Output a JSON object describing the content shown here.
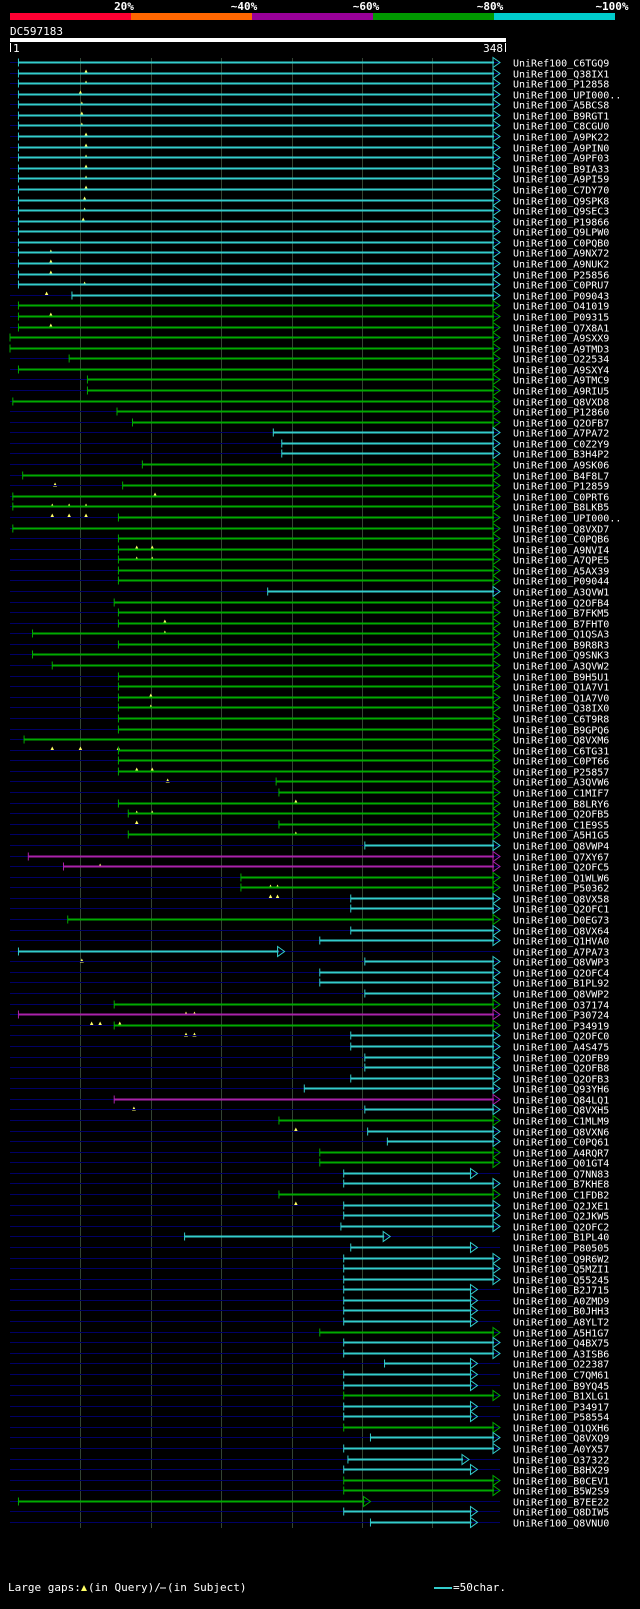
{
  "query": {
    "id": "DC597183",
    "start_label": "1",
    "end_label": "348",
    "length": 348
  },
  "legend": {
    "labels": [
      "20%",
      "~40%",
      "~60%",
      "~80%",
      "~100%"
    ],
    "colors": [
      "#ff0033",
      "#ff6600",
      "#990099",
      "#009900",
      "#00cccc"
    ]
  },
  "footer": {
    "gaps_label": "Large gaps:",
    "gaps_query": "(in Query)/",
    "gaps_subject": "(in Subject)",
    "scale_label": "=50char."
  },
  "colors": {
    "background": "#000000",
    "grid": "#334433",
    "line": "#000066",
    "cyan": "#33cccc",
    "green": "#00aa00",
    "magenta": "#aa22aa",
    "marker": "#ffff66"
  },
  "hits": [
    {
      "name": "UniRef100_C6TGQ9",
      "color": "cyan",
      "start": 6,
      "end": 348,
      "gaps": [
        54
      ]
    },
    {
      "name": "UniRef100_Q38IX1",
      "color": "cyan",
      "start": 6,
      "end": 348,
      "gaps": [
        54
      ]
    },
    {
      "name": "UniRef100_P12858",
      "color": "cyan",
      "start": 6,
      "end": 348,
      "gaps": [
        50
      ]
    },
    {
      "name": "UniRef100_UPI000..",
      "color": "cyan",
      "start": 6,
      "end": 348,
      "gaps": [
        51
      ]
    },
    {
      "name": "UniRef100_A5BCS8",
      "color": "cyan",
      "start": 6,
      "end": 348,
      "gaps": [
        51
      ]
    },
    {
      "name": "UniRef100_B9RGT1",
      "color": "cyan",
      "start": 6,
      "end": 348,
      "gaps": [
        51
      ]
    },
    {
      "name": "UniRef100_C8CGU0",
      "color": "cyan",
      "start": 6,
      "end": 348,
      "gaps": [
        54
      ]
    },
    {
      "name": "UniRef100_A9PK22",
      "color": "cyan",
      "start": 6,
      "end": 348,
      "gaps": [
        54
      ]
    },
    {
      "name": "UniRef100_A9PIN0",
      "color": "cyan",
      "start": 6,
      "end": 348,
      "gaps": [
        54
      ]
    },
    {
      "name": "UniRef100_A9PF03",
      "color": "cyan",
      "start": 6,
      "end": 348,
      "gaps": [
        54
      ]
    },
    {
      "name": "UniRef100_B9IA33",
      "color": "cyan",
      "start": 6,
      "end": 348,
      "gaps": [
        54
      ]
    },
    {
      "name": "UniRef100_A9PI59",
      "color": "cyan",
      "start": 6,
      "end": 348,
      "gaps": [
        54
      ]
    },
    {
      "name": "UniRef100_C7DY70",
      "color": "cyan",
      "start": 6,
      "end": 348,
      "gaps": [
        53
      ]
    },
    {
      "name": "UniRef100_Q9SPK8",
      "color": "cyan",
      "start": 6,
      "end": 348,
      "gaps": [
        53
      ]
    },
    {
      "name": "UniRef100_Q9SEC3",
      "color": "cyan",
      "start": 6,
      "end": 348,
      "gaps": [
        52
      ]
    },
    {
      "name": "UniRef100_P19866",
      "color": "cyan",
      "start": 6,
      "end": 348,
      "gaps": []
    },
    {
      "name": "UniRef100_Q9LPW0",
      "color": "cyan",
      "start": 6,
      "end": 348,
      "gaps": []
    },
    {
      "name": "UniRef100_C0PQB0",
      "color": "cyan",
      "start": 6,
      "end": 348,
      "gaps": [
        29
      ]
    },
    {
      "name": "UniRef100_A9NX72",
      "color": "cyan",
      "start": 6,
      "end": 348,
      "gaps": [
        29
      ]
    },
    {
      "name": "UniRef100_A9NUK2",
      "color": "cyan",
      "start": 6,
      "end": 348,
      "gaps": [
        29
      ]
    },
    {
      "name": "UniRef100_P25856",
      "color": "cyan",
      "start": 6,
      "end": 348,
      "gaps": [
        53
      ]
    },
    {
      "name": "UniRef100_C0PRU7",
      "color": "cyan",
      "start": 6,
      "end": 348,
      "gaps": [
        26
      ]
    },
    {
      "name": "UniRef100_P09043",
      "color": "cyan",
      "start": 44,
      "end": 348,
      "gaps": []
    },
    {
      "name": "UniRef100_O41019",
      "color": "green",
      "start": 6,
      "end": 348,
      "gaps": [
        29
      ]
    },
    {
      "name": "UniRef100_P09315",
      "color": "green",
      "start": 6,
      "end": 348,
      "gaps": [
        29
      ]
    },
    {
      "name": "UniRef100_Q7X8A1",
      "color": "green",
      "start": 6,
      "end": 348,
      "gaps": []
    },
    {
      "name": "UniRef100_A9SXX9",
      "color": "green",
      "start": -12,
      "end": 348,
      "gaps": []
    },
    {
      "name": "UniRef100_A9TMD3",
      "color": "green",
      "start": -12,
      "end": 348,
      "gaps": []
    },
    {
      "name": "UniRef100_O22534",
      "color": "green",
      "start": 42,
      "end": 348,
      "gaps": []
    },
    {
      "name": "UniRef100_A9SXY4",
      "color": "green",
      "start": 6,
      "end": 348,
      "gaps": []
    },
    {
      "name": "UniRef100_A9TMC9",
      "color": "green",
      "start": 55,
      "end": 348,
      "gaps": []
    },
    {
      "name": "UniRef100_A9RIU5",
      "color": "green",
      "start": 55,
      "end": 348,
      "gaps": []
    },
    {
      "name": "UniRef100_Q8VXD8",
      "color": "green",
      "start": 2,
      "end": 348,
      "gaps": []
    },
    {
      "name": "UniRef100_P12860",
      "color": "green",
      "start": 76,
      "end": 348,
      "gaps": []
    },
    {
      "name": "UniRef100_Q2OFB7",
      "color": "green",
      "start": 87,
      "end": 348,
      "gaps": []
    },
    {
      "name": "UniRef100_A7PA72",
      "color": "cyan",
      "start": 187,
      "end": 348,
      "gaps": []
    },
    {
      "name": "UniRef100_C0Z2Y9",
      "color": "cyan",
      "start": 193,
      "end": 348,
      "gaps": []
    },
    {
      "name": "UniRef100_B3H4P2",
      "color": "cyan",
      "start": 193,
      "end": 348,
      "gaps": []
    },
    {
      "name": "UniRef100_A9SK06",
      "color": "green",
      "start": 94,
      "end": 348,
      "gaps": []
    },
    {
      "name": "UniRef100_B4F8L7",
      "color": "green",
      "start": 9,
      "end": 348,
      "gaps": [
        32
      ]
    },
    {
      "name": "UniRef100_P12859",
      "color": "green",
      "start": 80,
      "end": 348,
      "gaps": [
        103
      ]
    },
    {
      "name": "UniRef100_C0PRT6",
      "color": "green",
      "start": 2,
      "end": 348,
      "gaps": [
        30,
        42,
        54
      ]
    },
    {
      "name": "UniRef100_B8LKB5",
      "color": "green",
      "start": 2,
      "end": 348,
      "gaps": [
        30,
        42,
        54
      ]
    },
    {
      "name": "UniRef100_UPI000..",
      "color": "green",
      "start": 77,
      "end": 348,
      "gaps": []
    },
    {
      "name": "UniRef100_Q8VXD7",
      "color": "green",
      "start": 2,
      "end": 348,
      "gaps": []
    },
    {
      "name": "UniRef100_C0PQB6",
      "color": "green",
      "start": 77,
      "end": 348,
      "gaps": [
        90,
        101
      ]
    },
    {
      "name": "UniRef100_A9NVI4",
      "color": "green",
      "start": 77,
      "end": 348,
      "gaps": [
        90,
        101
      ]
    },
    {
      "name": "UniRef100_A7QPE5",
      "color": "green",
      "start": 77,
      "end": 348,
      "gaps": []
    },
    {
      "name": "UniRef100_A5AX39",
      "color": "green",
      "start": 77,
      "end": 348,
      "gaps": []
    },
    {
      "name": "UniRef100_P09044",
      "color": "green",
      "start": 77,
      "end": 348,
      "gaps": []
    },
    {
      "name": "UniRef100_A3QVW1",
      "color": "cyan",
      "start": 183,
      "end": 348,
      "gaps": []
    },
    {
      "name": "UniRef100_Q2OFB4",
      "color": "green",
      "start": 74,
      "end": 348,
      "gaps": []
    },
    {
      "name": "UniRef100_B7FKM5",
      "color": "green",
      "start": 77,
      "end": 348,
      "gaps": [
        110
      ]
    },
    {
      "name": "UniRef100_B7FHT0",
      "color": "green",
      "start": 77,
      "end": 348,
      "gaps": [
        110
      ]
    },
    {
      "name": "UniRef100_Q1QSA3",
      "color": "green",
      "start": 16,
      "end": 348,
      "gaps": []
    },
    {
      "name": "UniRef100_B9R8R3",
      "color": "green",
      "start": 77,
      "end": 348,
      "gaps": []
    },
    {
      "name": "UniRef100_Q9SNK3",
      "color": "green",
      "start": 16,
      "end": 348,
      "gaps": []
    },
    {
      "name": "UniRef100_A3QVW2",
      "color": "green",
      "start": 30,
      "end": 348,
      "gaps": []
    },
    {
      "name": "UniRef100_B9H5U1",
      "color": "green",
      "start": 77,
      "end": 348,
      "gaps": []
    },
    {
      "name": "UniRef100_Q1A7V1",
      "color": "green",
      "start": 77,
      "end": 348,
      "gaps": [
        100
      ]
    },
    {
      "name": "UniRef100_Q1A7V0",
      "color": "green",
      "start": 77,
      "end": 348,
      "gaps": [
        100
      ]
    },
    {
      "name": "UniRef100_Q38IX0",
      "color": "green",
      "start": 77,
      "end": 348,
      "gaps": []
    },
    {
      "name": "UniRef100_C6T9R8",
      "color": "green",
      "start": 77,
      "end": 348,
      "gaps": []
    },
    {
      "name": "UniRef100_B9GPQ6",
      "color": "green",
      "start": 77,
      "end": 348,
      "gaps": []
    },
    {
      "name": "UniRef100_Q8VXM6",
      "color": "green",
      "start": 10,
      "end": 348,
      "gaps": [
        30,
        50,
        77
      ]
    },
    {
      "name": "UniRef100_C6TG31",
      "color": "green",
      "start": 77,
      "end": 348,
      "gaps": []
    },
    {
      "name": "UniRef100_C0PT66",
      "color": "green",
      "start": 77,
      "end": 348,
      "gaps": [
        90,
        101
      ]
    },
    {
      "name": "UniRef100_P25857",
      "color": "green",
      "start": 77,
      "end": 348,
      "gaps": [
        112
      ]
    },
    {
      "name": "UniRef100_A3QVW6",
      "color": "green",
      "start": 189,
      "end": 348,
      "gaps": []
    },
    {
      "name": "UniRef100_C1MIF7",
      "color": "green",
      "start": 191,
      "end": 348,
      "gaps": [
        203
      ]
    },
    {
      "name": "UniRef100_B8LRY6",
      "color": "green",
      "start": 77,
      "end": 348,
      "gaps": [
        90,
        101
      ]
    },
    {
      "name": "UniRef100_Q2OFB5",
      "color": "green",
      "start": 84,
      "end": 348,
      "gaps": [
        90
      ]
    },
    {
      "name": "UniRef100_C1E9S5",
      "color": "green",
      "start": 191,
      "end": 348,
      "gaps": [
        203
      ]
    },
    {
      "name": "UniRef100_A5H1G5",
      "color": "green",
      "start": 84,
      "end": 348,
      "gaps": []
    },
    {
      "name": "UniRef100_Q8VWP4",
      "color": "cyan",
      "start": 252,
      "end": 348,
      "gaps": []
    },
    {
      "name": "UniRef100_Q7XY67",
      "color": "magenta",
      "start": 13,
      "end": 348,
      "gaps": [
        64
      ]
    },
    {
      "name": "UniRef100_Q2OFC5",
      "color": "magenta",
      "start": 38,
      "end": 348,
      "gaps": []
    },
    {
      "name": "UniRef100_Q1WLW6",
      "color": "green",
      "start": 164,
      "end": 348,
      "gaps": [
        185,
        190
      ]
    },
    {
      "name": "UniRef100_P50362",
      "color": "green",
      "start": 164,
      "end": 348,
      "gaps": [
        185,
        190
      ]
    },
    {
      "name": "UniRef100_Q8VX58",
      "color": "cyan",
      "start": 242,
      "end": 348,
      "gaps": []
    },
    {
      "name": "UniRef100_Q2OFC1",
      "color": "cyan",
      "start": 242,
      "end": 348,
      "gaps": []
    },
    {
      "name": "UniRef100_D0EG73",
      "color": "green",
      "start": 41,
      "end": 348,
      "gaps": []
    },
    {
      "name": "UniRef100_Q8VX64",
      "color": "cyan",
      "start": 242,
      "end": 348,
      "gaps": []
    },
    {
      "name": "UniRef100_Q1HVA0",
      "color": "cyan",
      "start": 220,
      "end": 348,
      "gaps": []
    },
    {
      "name": "UniRef100_A7PA73",
      "color": "cyan",
      "start": 6,
      "end": 195,
      "gaps": [
        51
      ]
    },
    {
      "name": "UniRef100_Q8VWP3",
      "color": "cyan",
      "start": 252,
      "end": 348,
      "gaps": []
    },
    {
      "name": "UniRef100_Q2OFC4",
      "color": "cyan",
      "start": 220,
      "end": 348,
      "gaps": []
    },
    {
      "name": "UniRef100_B1PL92",
      "color": "cyan",
      "start": 220,
      "end": 348,
      "gaps": []
    },
    {
      "name": "UniRef100_Q8VWP2",
      "color": "cyan",
      "start": 252,
      "end": 348,
      "gaps": []
    },
    {
      "name": "UniRef100_O37174",
      "color": "green",
      "start": 74,
      "end": 348,
      "gaps": [
        125,
        131
      ]
    },
    {
      "name": "UniRef100_P30724",
      "color": "magenta",
      "start": 6,
      "end": 348,
      "gaps": [
        58,
        64,
        78
      ]
    },
    {
      "name": "UniRef100_P34919",
      "color": "green",
      "start": 74,
      "end": 348,
      "gaps": [
        125,
        131
      ]
    },
    {
      "name": "UniRef100_Q2OFC0",
      "color": "cyan",
      "start": 242,
      "end": 348,
      "gaps": []
    },
    {
      "name": "UniRef100_A4S475",
      "color": "cyan",
      "start": 242,
      "end": 348,
      "gaps": []
    },
    {
      "name": "UniRef100_Q2OFB9",
      "color": "cyan",
      "start": 252,
      "end": 348,
      "gaps": []
    },
    {
      "name": "UniRef100_Q2OFB8",
      "color": "cyan",
      "start": 252,
      "end": 348,
      "gaps": []
    },
    {
      "name": "UniRef100_Q2OFB3",
      "color": "cyan",
      "start": 242,
      "end": 348,
      "gaps": []
    },
    {
      "name": "UniRef100_Q93YH6",
      "color": "cyan",
      "start": 209,
      "end": 348,
      "gaps": []
    },
    {
      "name": "UniRef100_Q84LQ1",
      "color": "magenta",
      "start": 74,
      "end": 348,
      "gaps": [
        88
      ]
    },
    {
      "name": "UniRef100_Q8VXH5",
      "color": "cyan",
      "start": 252,
      "end": 348,
      "gaps": []
    },
    {
      "name": "UniRef100_C1MLM9",
      "color": "green",
      "start": 191,
      "end": 348,
      "gaps": [
        203
      ]
    },
    {
      "name": "UniRef100_Q8VXN6",
      "color": "cyan",
      "start": 254,
      "end": 348,
      "gaps": []
    },
    {
      "name": "UniRef100_C0PQ61",
      "color": "cyan",
      "start": 268,
      "end": 348,
      "gaps": []
    },
    {
      "name": "UniRef100_A4RQR7",
      "color": "green",
      "start": 220,
      "end": 348,
      "gaps": []
    },
    {
      "name": "UniRef100_Q01GT4",
      "color": "green",
      "start": 220,
      "end": 348,
      "gaps": []
    },
    {
      "name": "UniRef100_Q7NN83",
      "color": "cyan",
      "start": 237,
      "end": 332,
      "gaps": []
    },
    {
      "name": "UniRef100_B7KHE8",
      "color": "cyan",
      "start": 237,
      "end": 348,
      "gaps": []
    },
    {
      "name": "UniRef100_C1FDB2",
      "color": "green",
      "start": 191,
      "end": 348,
      "gaps": [
        203
      ]
    },
    {
      "name": "UniRef100_Q2JXE1",
      "color": "cyan",
      "start": 237,
      "end": 348,
      "gaps": []
    },
    {
      "name": "UniRef100_Q2JKW5",
      "color": "cyan",
      "start": 237,
      "end": 348,
      "gaps": []
    },
    {
      "name": "UniRef100_Q2OFC2",
      "color": "cyan",
      "start": 235,
      "end": 348,
      "gaps": []
    },
    {
      "name": "UniRef100_B1PL40",
      "color": "cyan",
      "start": 124,
      "end": 270,
      "gaps": []
    },
    {
      "name": "UniRef100_P80505",
      "color": "cyan",
      "start": 242,
      "end": 332,
      "gaps": []
    },
    {
      "name": "UniRef100_Q9R6W2",
      "color": "cyan",
      "start": 237,
      "end": 348,
      "gaps": []
    },
    {
      "name": "UniRef100_Q5MZI1",
      "color": "cyan",
      "start": 237,
      "end": 348,
      "gaps": []
    },
    {
      "name": "UniRef100_Q55245",
      "color": "cyan",
      "start": 237,
      "end": 348,
      "gaps": []
    },
    {
      "name": "UniRef100_B2J715",
      "color": "cyan",
      "start": 237,
      "end": 332,
      "gaps": []
    },
    {
      "name": "UniRef100_A0ZMD9",
      "color": "cyan",
      "start": 237,
      "end": 332,
      "gaps": []
    },
    {
      "name": "UniRef100_B0JHH3",
      "color": "cyan",
      "start": 237,
      "end": 332,
      "gaps": []
    },
    {
      "name": "UniRef100_A8YLT2",
      "color": "cyan",
      "start": 237,
      "end": 332,
      "gaps": []
    },
    {
      "name": "UniRef100_A5H1G7",
      "color": "green",
      "start": 220,
      "end": 348,
      "gaps": []
    },
    {
      "name": "UniRef100_Q4BX75",
      "color": "cyan",
      "start": 237,
      "end": 348,
      "gaps": []
    },
    {
      "name": "UniRef100_A3ISB6",
      "color": "cyan",
      "start": 237,
      "end": 348,
      "gaps": []
    },
    {
      "name": "UniRef100_O22387",
      "color": "cyan",
      "start": 266,
      "end": 332,
      "gaps": []
    },
    {
      "name": "UniRef100_C7QM61",
      "color": "cyan",
      "start": 237,
      "end": 332,
      "gaps": []
    },
    {
      "name": "UniRef100_B9YQ45",
      "color": "cyan",
      "start": 237,
      "end": 332,
      "gaps": []
    },
    {
      "name": "UniRef100_B1XLG1",
      "color": "green",
      "start": 237,
      "end": 348,
      "gaps": []
    },
    {
      "name": "UniRef100_P34917",
      "color": "cyan",
      "start": 237,
      "end": 332,
      "gaps": []
    },
    {
      "name": "UniRef100_P58554",
      "color": "cyan",
      "start": 237,
      "end": 332,
      "gaps": []
    },
    {
      "name": "UniRef100_Q1QXH6",
      "color": "green",
      "start": 237,
      "end": 348,
      "gaps": []
    },
    {
      "name": "UniRef100_Q8VXQ9",
      "color": "cyan",
      "start": 256,
      "end": 348,
      "gaps": []
    },
    {
      "name": "UniRef100_A0YX57",
      "color": "cyan",
      "start": 237,
      "end": 348,
      "gaps": []
    },
    {
      "name": "UniRef100_O37322",
      "color": "cyan",
      "start": 240,
      "end": 326,
      "gaps": []
    },
    {
      "name": "UniRef100_B8HX29",
      "color": "cyan",
      "start": 237,
      "end": 332,
      "gaps": []
    },
    {
      "name": "UniRef100_B0CEV1",
      "color": "green",
      "start": 237,
      "end": 348,
      "gaps": []
    },
    {
      "name": "UniRef100_B5W2S9",
      "color": "green",
      "start": 237,
      "end": 348,
      "gaps": []
    },
    {
      "name": "UniRef100_B7EE22",
      "color": "green",
      "start": 6,
      "end": 256,
      "gaps": []
    },
    {
      "name": "UniRef100_Q8DIW5",
      "color": "cyan",
      "start": 237,
      "end": 332,
      "gaps": []
    },
    {
      "name": "UniRef100_Q8VNU0",
      "color": "cyan",
      "start": 256,
      "end": 332,
      "gaps": []
    }
  ]
}
